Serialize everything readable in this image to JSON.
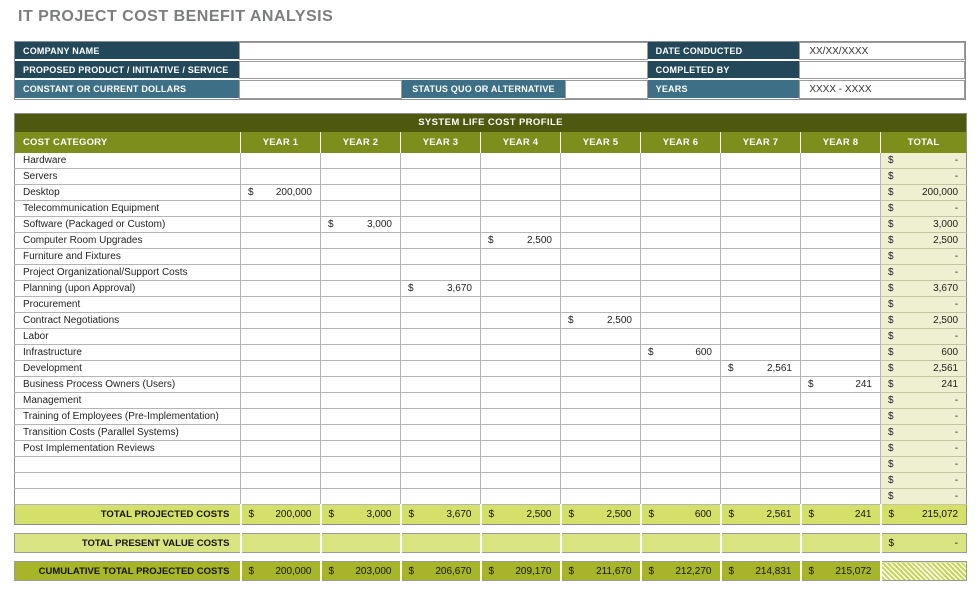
{
  "page_title": "IT PROJECT COST BENEFIT ANALYSIS",
  "info_panel": {
    "company_name": {
      "label": "COMPANY NAME",
      "value": ""
    },
    "proposed": {
      "label": "PROPOSED PRODUCT / INITIATIVE / SERVICE",
      "value": ""
    },
    "constant": {
      "label": "CONSTANT OR CURRENT DOLLARS",
      "value": ""
    },
    "status_quo": {
      "label": "STATUS QUO OR ALTERNATIVE",
      "value": ""
    },
    "date_conducted": {
      "label": "DATE CONDUCTED",
      "value": "XX/XX/XXXX"
    },
    "completed_by": {
      "label": "COMPLETED BY",
      "value": ""
    },
    "years": {
      "label": "YEARS",
      "value": "XXXX - XXXX"
    }
  },
  "cost_table": {
    "banner": "SYSTEM LIFE COST PROFILE",
    "columns": [
      "COST CATEGORY",
      "YEAR 1",
      "YEAR 2",
      "YEAR 3",
      "YEAR 4",
      "YEAR 5",
      "YEAR 6",
      "YEAR 7",
      "YEAR 8",
      "TOTAL"
    ],
    "currency_symbol": "$",
    "empty_display": "-",
    "rows": [
      {
        "label": "Hardware",
        "values": [
          "",
          "",
          "",
          "",
          "",
          "",
          "",
          ""
        ],
        "total": "-"
      },
      {
        "label": "Servers",
        "values": [
          "",
          "",
          "",
          "",
          "",
          "",
          "",
          ""
        ],
        "total": "-"
      },
      {
        "label": "Desktop",
        "values": [
          "200,000",
          "",
          "",
          "",
          "",
          "",
          "",
          ""
        ],
        "total": "200,000"
      },
      {
        "label": "Telecommunication Equipment",
        "values": [
          "",
          "",
          "",
          "",
          "",
          "",
          "",
          ""
        ],
        "total": "-"
      },
      {
        "label": "Software (Packaged or Custom)",
        "values": [
          "",
          "3,000",
          "",
          "",
          "",
          "",
          "",
          ""
        ],
        "total": "3,000"
      },
      {
        "label": "Computer Room Upgrades",
        "values": [
          "",
          "",
          "",
          "2,500",
          "",
          "",
          "",
          ""
        ],
        "total": "2,500"
      },
      {
        "label": "Furniture and Fixtures",
        "values": [
          "",
          "",
          "",
          "",
          "",
          "",
          "",
          ""
        ],
        "total": "-"
      },
      {
        "label": "Project Organizational/Support Costs",
        "values": [
          "",
          "",
          "",
          "",
          "",
          "",
          "",
          ""
        ],
        "total": "-"
      },
      {
        "label": "Planning (upon Approval)",
        "values": [
          "",
          "",
          "3,670",
          "",
          "",
          "",
          "",
          ""
        ],
        "total": "3,670"
      },
      {
        "label": "Procurement",
        "values": [
          "",
          "",
          "",
          "",
          "",
          "",
          "",
          ""
        ],
        "total": "-"
      },
      {
        "label": "Contract Negotiations",
        "values": [
          "",
          "",
          "",
          "",
          "2,500",
          "",
          "",
          ""
        ],
        "total": "2,500"
      },
      {
        "label": "Labor",
        "values": [
          "",
          "",
          "",
          "",
          "",
          "",
          "",
          ""
        ],
        "total": "-"
      },
      {
        "label": "Infrastructure",
        "values": [
          "",
          "",
          "",
          "",
          "",
          "600",
          "",
          ""
        ],
        "total": "600"
      },
      {
        "label": "Development",
        "values": [
          "",
          "",
          "",
          "",
          "",
          "",
          "2,561",
          ""
        ],
        "total": "2,561"
      },
      {
        "label": "Business Process Owners (Users)",
        "values": [
          "",
          "",
          "",
          "",
          "",
          "",
          "",
          "241"
        ],
        "total": "241"
      },
      {
        "label": "Management",
        "values": [
          "",
          "",
          "",
          "",
          "",
          "",
          "",
          ""
        ],
        "total": "-"
      },
      {
        "label": "Training of Employees (Pre-Implementation)",
        "values": [
          "",
          "",
          "",
          "",
          "",
          "",
          "",
          ""
        ],
        "total": "-"
      },
      {
        "label": "Transition Costs (Parallel Systems)",
        "values": [
          "",
          "",
          "",
          "",
          "",
          "",
          "",
          ""
        ],
        "total": "-"
      },
      {
        "label": "Post Implementation Reviews",
        "values": [
          "",
          "",
          "",
          "",
          "",
          "",
          "",
          ""
        ],
        "total": "-"
      },
      {
        "label": "",
        "values": [
          "",
          "",
          "",
          "",
          "",
          "",
          "",
          ""
        ],
        "total": "-"
      },
      {
        "label": "",
        "values": [
          "",
          "",
          "",
          "",
          "",
          "",
          "",
          ""
        ],
        "total": "-"
      },
      {
        "label": "",
        "values": [
          "",
          "",
          "",
          "",
          "",
          "",
          "",
          ""
        ],
        "total": "-"
      }
    ],
    "summary": {
      "total_projected": {
        "label": "TOTAL PROJECTED COSTS",
        "values": [
          "200,000",
          "3,000",
          "3,670",
          "2,500",
          "2,500",
          "600",
          "2,561",
          "241"
        ],
        "total": "215,072"
      },
      "total_present_value": {
        "label": "TOTAL PRESENT VALUE COSTS",
        "values": [
          "",
          "",
          "",
          "",
          "",
          "",
          "",
          ""
        ],
        "total": "-"
      },
      "cumulative": {
        "label": "CUMULATIVE TOTAL PROJECTED COSTS",
        "values": [
          "200,000",
          "203,000",
          "206,670",
          "209,170",
          "211,670",
          "212,270",
          "214,831",
          "215,072"
        ],
        "total": ""
      }
    }
  },
  "colors": {
    "navy_header": "#23485a",
    "steel_blue_header": "#3d7086",
    "banner_dark_olive": "#4e590f",
    "column_header_olive": "#7d8e1c",
    "total_column_pale": "#eef0d1",
    "total_projected_row": "#d5e06a",
    "present_value_row": "#d9e381",
    "cumulative_row": "#a8b528",
    "hatch_stripe": "#c6d44e",
    "title_gray": "#7b7d7f"
  }
}
